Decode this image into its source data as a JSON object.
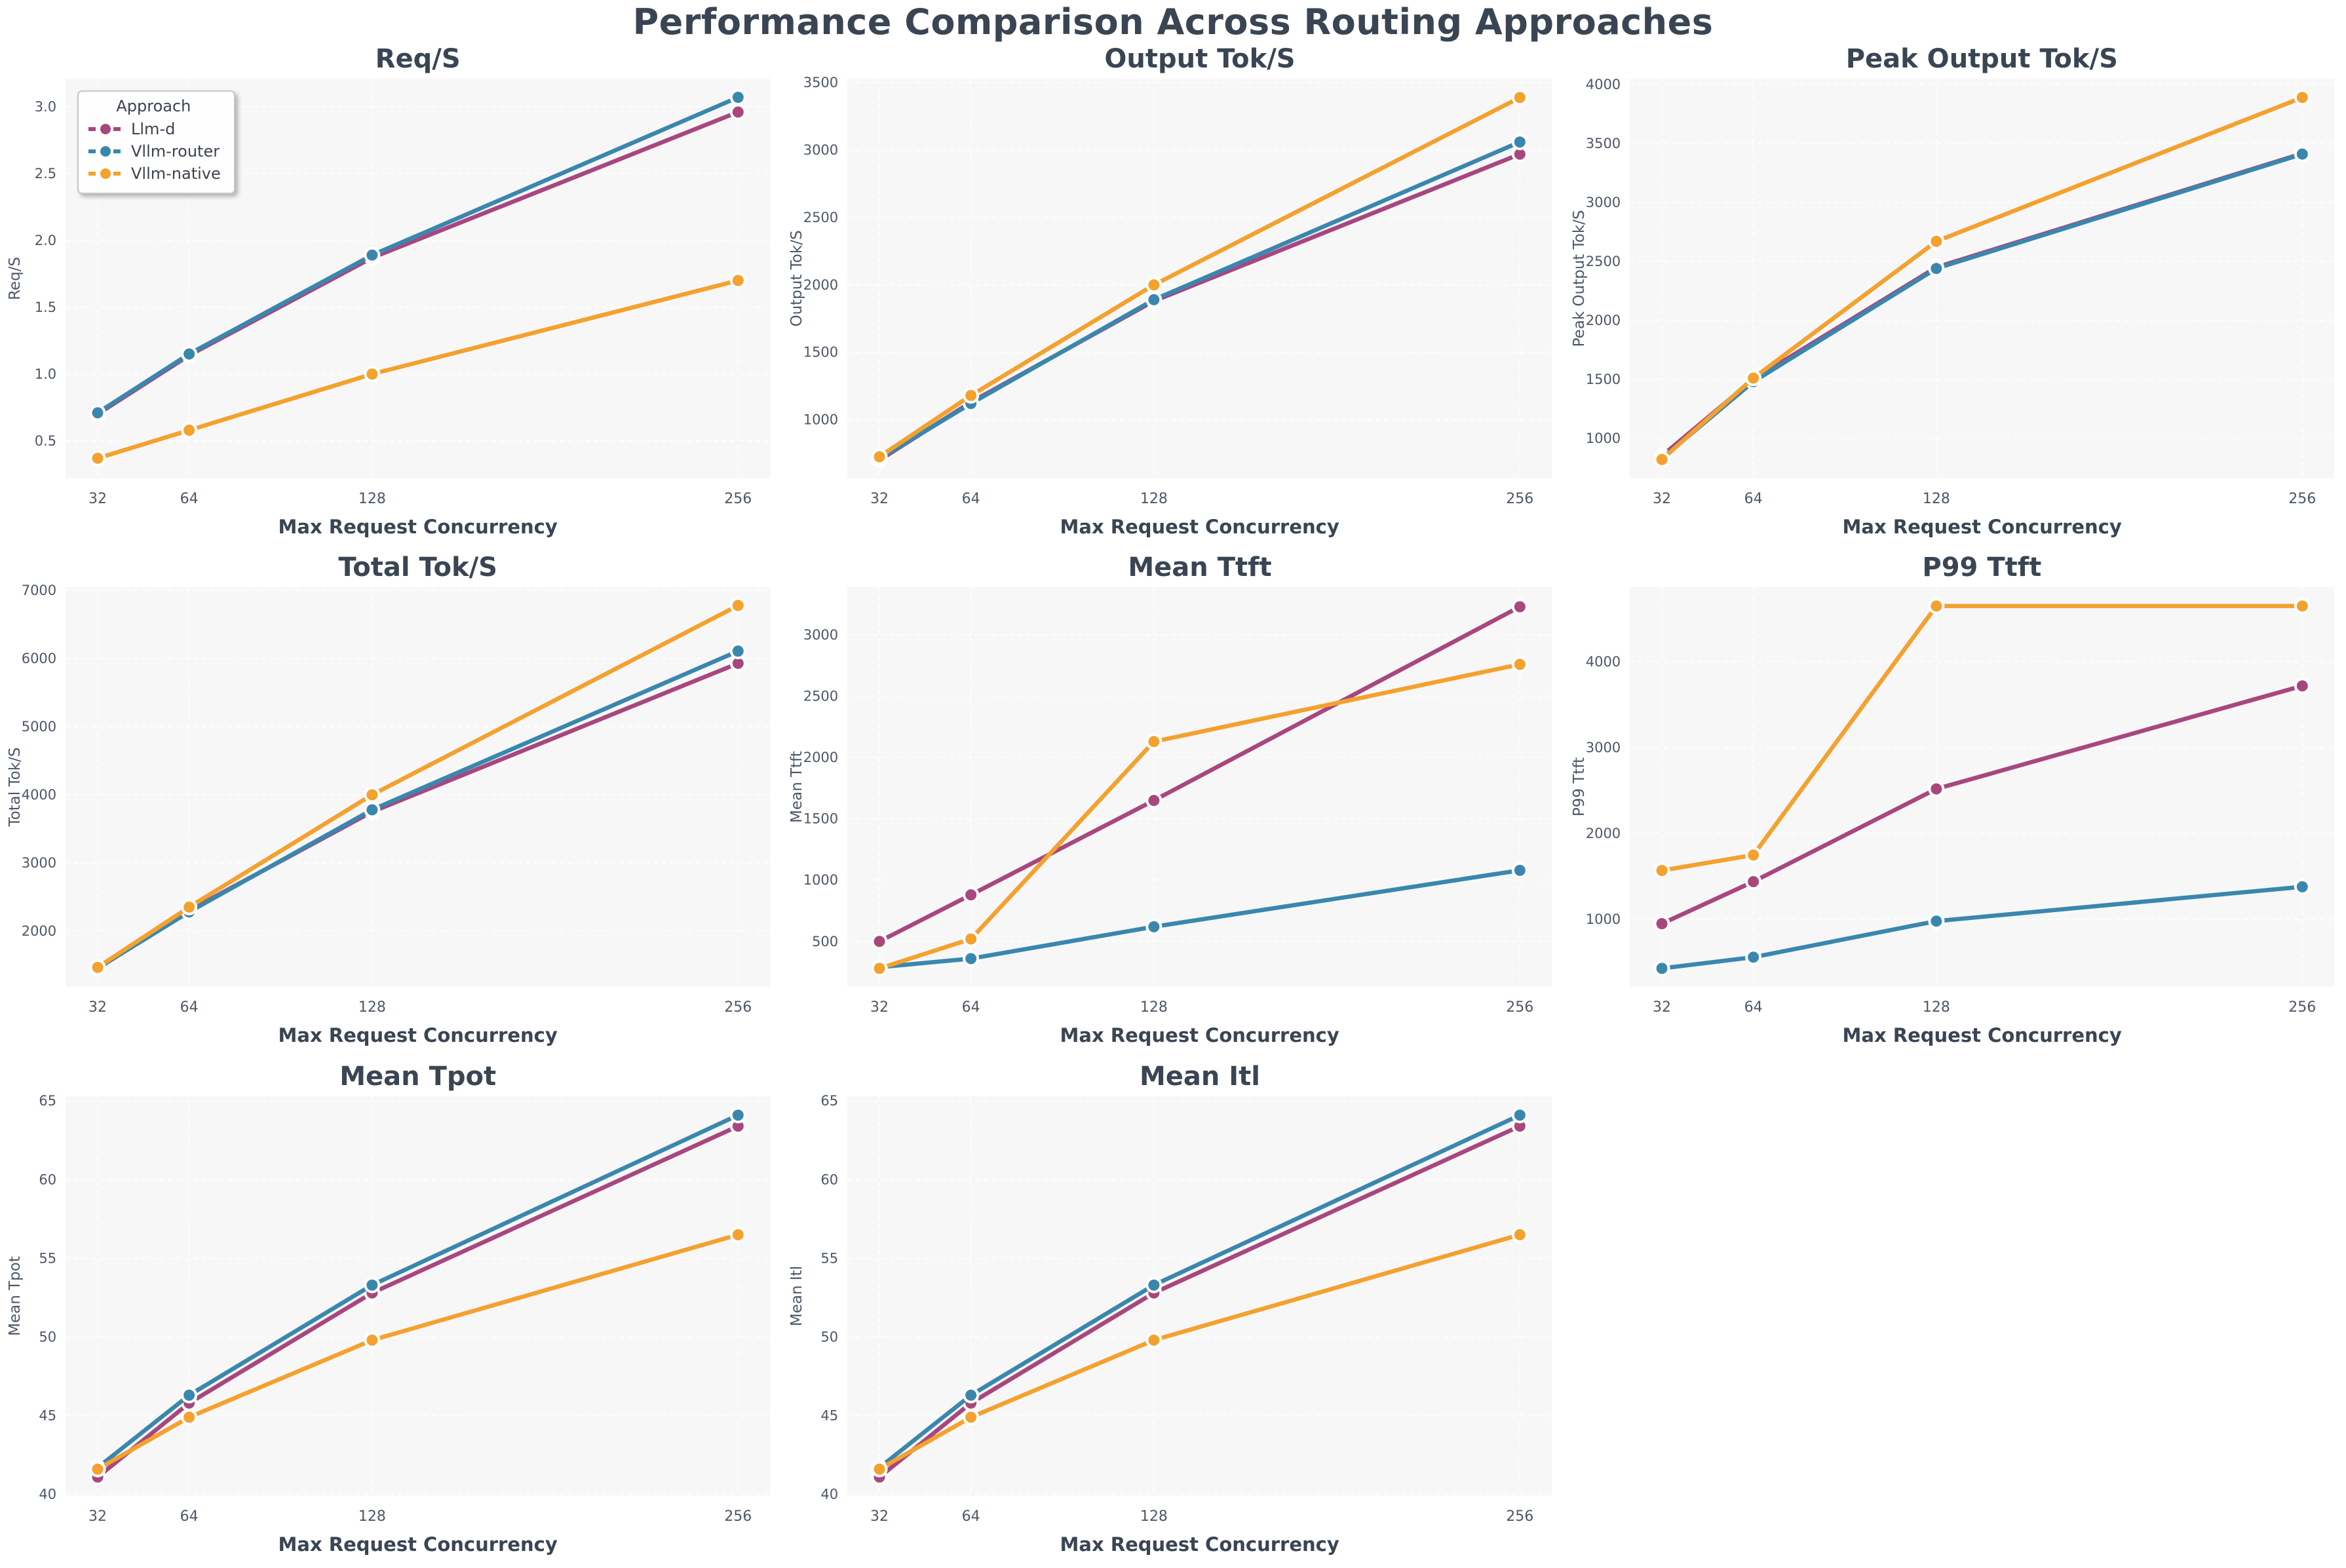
{
  "page_title": "Performance Comparison Across Routing Approaches",
  "xlabel": "Max Request Concurrency",
  "legend": {
    "title": "Approach",
    "entries": [
      {
        "label": "Llm-d",
        "color": "#a8477e"
      },
      {
        "label": "Vllm-router",
        "color": "#3a87ae"
      },
      {
        "label": "Vllm-native",
        "color": "#f4a12e"
      }
    ]
  },
  "colors": {
    "plot_bg": "#f7f7f8",
    "grid": "#fdfdfe",
    "title_text": "#3a4554",
    "tick_text": "#4d5766",
    "marker_edge": "#ffffff"
  },
  "chart_data": [
    {
      "type": "line",
      "title": "Req/S",
      "ylabel": "Req/S",
      "x": [
        32,
        64,
        128,
        256
      ],
      "xtick_labels": [
        "32",
        "64",
        "128",
        "256"
      ],
      "ylim": [
        0.22,
        3.21
      ],
      "yticks": [
        0.5,
        1.0,
        1.5,
        2.0,
        2.5,
        3.0
      ],
      "ytick_labels": [
        "0.5",
        "1.0",
        "1.5",
        "2.0",
        "2.5",
        "3.0"
      ],
      "series": [
        {
          "name": "Llm-d",
          "values": [
            0.7,
            1.14,
            1.87,
            2.96
          ]
        },
        {
          "name": "Vllm-router",
          "values": [
            0.71,
            1.15,
            1.89,
            3.07
          ]
        },
        {
          "name": "Vllm-native",
          "values": [
            0.37,
            0.58,
            1.0,
            1.7
          ]
        }
      ]
    },
    {
      "type": "line",
      "title": "Output Tok/S",
      "ylabel": "Output Tok/S",
      "x": [
        32,
        64,
        128,
        256
      ],
      "xtick_labels": [
        "32",
        "64",
        "128",
        "256"
      ],
      "ylim": [
        565,
        3530
      ],
      "yticks": [
        1000,
        1500,
        2000,
        2500,
        3000,
        3500
      ],
      "ytick_labels": [
        "1000",
        "1500",
        "2000",
        "2500",
        "3000",
        "3500"
      ],
      "series": [
        {
          "name": "Llm-d",
          "values": [
            700,
            1130,
            1880,
            2970
          ]
        },
        {
          "name": "Vllm-router",
          "values": [
            710,
            1120,
            1890,
            3060
          ]
        },
        {
          "name": "Vllm-native",
          "values": [
            725,
            1180,
            2000,
            3390
          ]
        }
      ]
    },
    {
      "type": "line",
      "title": "Peak Output Tok/S",
      "ylabel": "Peak Output Tok/S",
      "x": [
        32,
        64,
        128,
        256
      ],
      "xtick_labels": [
        "32",
        "64",
        "128",
        "256"
      ],
      "ylim": [
        660,
        4050
      ],
      "yticks": [
        1000,
        1500,
        2000,
        2500,
        3000,
        3500,
        4000
      ],
      "ytick_labels": [
        "1000",
        "1500",
        "2000",
        "2500",
        "3000",
        "3500",
        "4000"
      ],
      "series": [
        {
          "name": "Llm-d",
          "values": [
            850,
            1500,
            2450,
            3415
          ]
        },
        {
          "name": "Vllm-router",
          "values": [
            830,
            1480,
            2440,
            3410
          ]
        },
        {
          "name": "Vllm-native",
          "values": [
            820,
            1510,
            2670,
            3890
          ]
        }
      ]
    },
    {
      "type": "line",
      "title": "Total Tok/S",
      "ylabel": "Total Tok/S",
      "x": [
        32,
        64,
        128,
        256
      ],
      "xtick_labels": [
        "32",
        "64",
        "128",
        "256"
      ],
      "ylim": [
        1180,
        7050
      ],
      "yticks": [
        2000,
        3000,
        4000,
        5000,
        6000,
        7000
      ],
      "ytick_labels": [
        "2000",
        "3000",
        "4000",
        "5000",
        "6000",
        "7000"
      ],
      "series": [
        {
          "name": "Llm-d",
          "values": [
            1450,
            2300,
            3750,
            5930
          ]
        },
        {
          "name": "Vllm-router",
          "values": [
            1455,
            2280,
            3780,
            6110
          ]
        },
        {
          "name": "Vllm-native",
          "values": [
            1465,
            2350,
            4000,
            6780
          ]
        }
      ]
    },
    {
      "type": "line",
      "title": "Mean Ttft",
      "ylabel": "Mean Ttft",
      "x": [
        32,
        64,
        128,
        256
      ],
      "xtick_labels": [
        "32",
        "64",
        "128",
        "256"
      ],
      "ylim": [
        130,
        3390
      ],
      "yticks": [
        500,
        1000,
        1500,
        2000,
        2500,
        3000
      ],
      "ytick_labels": [
        "500",
        "1000",
        "1500",
        "2000",
        "2500",
        "3000"
      ],
      "series": [
        {
          "name": "Llm-d",
          "values": [
            500,
            880,
            1650,
            3230
          ]
        },
        {
          "name": "Vllm-router",
          "values": [
            290,
            360,
            620,
            1080
          ]
        },
        {
          "name": "Vllm-native",
          "values": [
            280,
            520,
            2130,
            2760
          ]
        }
      ]
    },
    {
      "type": "line",
      "title": "P99 Ttft",
      "ylabel": "P99 Ttft",
      "x": [
        32,
        64,
        128,
        256
      ],
      "xtick_labels": [
        "32",
        "64",
        "128",
        "256"
      ],
      "ylim": [
        215,
        4870
      ],
      "yticks": [
        1000,
        2000,
        3000,
        4000
      ],
      "ytick_labels": [
        "1000",
        "2000",
        "3000",
        "4000"
      ],
      "series": [
        {
          "name": "Llm-d",
          "values": [
            950,
            1440,
            2520,
            3720
          ]
        },
        {
          "name": "Vllm-router",
          "values": [
            430,
            560,
            980,
            1380
          ]
        },
        {
          "name": "Vllm-native",
          "values": [
            1570,
            1750,
            4650,
            4650
          ]
        }
      ]
    },
    {
      "type": "line",
      "title": "Mean Tpot",
      "ylabel": "Mean Tpot",
      "x": [
        32,
        64,
        128,
        256
      ],
      "xtick_labels": [
        "32",
        "64",
        "128",
        "256"
      ],
      "ylim": [
        39.9,
        65.3
      ],
      "yticks": [
        40,
        45,
        50,
        55,
        60,
        65
      ],
      "ytick_labels": [
        "40",
        "45",
        "50",
        "55",
        "60",
        "65"
      ],
      "series": [
        {
          "name": "Llm-d",
          "values": [
            41.1,
            45.8,
            52.8,
            63.4
          ]
        },
        {
          "name": "Vllm-router",
          "values": [
            41.7,
            46.3,
            53.3,
            64.1
          ]
        },
        {
          "name": "Vllm-native",
          "values": [
            41.6,
            44.9,
            49.8,
            56.5
          ]
        }
      ]
    },
    {
      "type": "line",
      "title": "Mean Itl",
      "ylabel": "Mean Itl",
      "x": [
        32,
        64,
        128,
        256
      ],
      "xtick_labels": [
        "32",
        "64",
        "128",
        "256"
      ],
      "ylim": [
        39.9,
        65.3
      ],
      "yticks": [
        40,
        45,
        50,
        55,
        60,
        65
      ],
      "ytick_labels": [
        "40",
        "45",
        "50",
        "55",
        "60",
        "65"
      ],
      "series": [
        {
          "name": "Llm-d",
          "values": [
            41.1,
            45.8,
            52.8,
            63.4
          ]
        },
        {
          "name": "Vllm-router",
          "values": [
            41.7,
            46.3,
            53.3,
            64.1
          ]
        },
        {
          "name": "Vllm-native",
          "values": [
            41.6,
            44.9,
            49.8,
            56.5
          ]
        }
      ]
    }
  ]
}
